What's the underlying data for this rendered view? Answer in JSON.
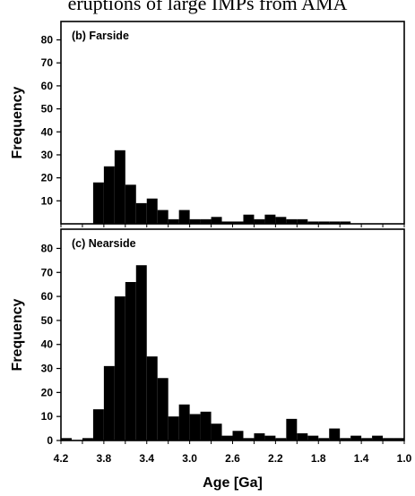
{
  "caption": "eruptions of large IMPs from AMA",
  "chart_data": [
    {
      "type": "bar",
      "panel_label": "(b) Farside",
      "ylabel": "Frequency",
      "xlabel": "",
      "xlim": [
        4.2,
        1.0
      ],
      "ylim": [
        0,
        88
      ],
      "yticks": [
        10,
        20,
        30,
        40,
        50,
        60,
        70,
        80
      ],
      "bin_width": 0.1,
      "bins": [
        {
          "x": 3.85,
          "value": 18
        },
        {
          "x": 3.75,
          "value": 25
        },
        {
          "x": 3.65,
          "value": 32
        },
        {
          "x": 3.55,
          "value": 17
        },
        {
          "x": 3.45,
          "value": 9
        },
        {
          "x": 3.35,
          "value": 11
        },
        {
          "x": 3.25,
          "value": 6
        },
        {
          "x": 3.15,
          "value": 2
        },
        {
          "x": 3.05,
          "value": 6
        },
        {
          "x": 2.95,
          "value": 2
        },
        {
          "x": 2.85,
          "value": 2
        },
        {
          "x": 2.75,
          "value": 3
        },
        {
          "x": 2.65,
          "value": 1
        },
        {
          "x": 2.55,
          "value": 1
        },
        {
          "x": 2.45,
          "value": 4
        },
        {
          "x": 2.35,
          "value": 2
        },
        {
          "x": 2.25,
          "value": 4
        },
        {
          "x": 2.15,
          "value": 3
        },
        {
          "x": 2.05,
          "value": 2
        },
        {
          "x": 1.95,
          "value": 2
        },
        {
          "x": 1.85,
          "value": 1
        },
        {
          "x": 1.75,
          "value": 1
        },
        {
          "x": 1.65,
          "value": 1
        },
        {
          "x": 1.55,
          "value": 1
        }
      ]
    },
    {
      "type": "bar",
      "panel_label": "(c) Nearside",
      "ylabel": "Frequency",
      "xlabel": "Age [Ga]",
      "xlim": [
        4.2,
        1.0
      ],
      "ylim": [
        0,
        88
      ],
      "yticks": [
        0,
        10,
        20,
        30,
        40,
        50,
        60,
        70,
        80
      ],
      "xticks": [
        "4.2",
        "3.8",
        "3.4",
        "3.0",
        "2.6",
        "2.2",
        "1.8",
        "1.4",
        "1.0"
      ],
      "xtick_values": [
        4.2,
        3.8,
        3.4,
        3.0,
        2.6,
        2.2,
        1.8,
        1.4,
        1.0
      ],
      "bin_width": 0.1,
      "bins": [
        {
          "x": 4.15,
          "value": 1
        },
        {
          "x": 3.95,
          "value": 1
        },
        {
          "x": 3.85,
          "value": 13
        },
        {
          "x": 3.75,
          "value": 31
        },
        {
          "x": 3.65,
          "value": 60
        },
        {
          "x": 3.55,
          "value": 66
        },
        {
          "x": 3.45,
          "value": 73
        },
        {
          "x": 3.35,
          "value": 35
        },
        {
          "x": 3.25,
          "value": 26
        },
        {
          "x": 3.15,
          "value": 10
        },
        {
          "x": 3.05,
          "value": 15
        },
        {
          "x": 2.95,
          "value": 11
        },
        {
          "x": 2.85,
          "value": 12
        },
        {
          "x": 2.75,
          "value": 7
        },
        {
          "x": 2.65,
          "value": 2
        },
        {
          "x": 2.55,
          "value": 4
        },
        {
          "x": 2.45,
          "value": 1
        },
        {
          "x": 2.35,
          "value": 3
        },
        {
          "x": 2.25,
          "value": 2
        },
        {
          "x": 2.15,
          "value": 1
        },
        {
          "x": 2.05,
          "value": 9
        },
        {
          "x": 1.95,
          "value": 3
        },
        {
          "x": 1.85,
          "value": 2
        },
        {
          "x": 1.75,
          "value": 1
        },
        {
          "x": 1.65,
          "value": 5
        },
        {
          "x": 1.55,
          "value": 1
        },
        {
          "x": 1.45,
          "value": 2
        },
        {
          "x": 1.35,
          "value": 1
        },
        {
          "x": 1.25,
          "value": 2
        },
        {
          "x": 1.15,
          "value": 1
        },
        {
          "x": 1.05,
          "value": 1
        }
      ]
    }
  ]
}
